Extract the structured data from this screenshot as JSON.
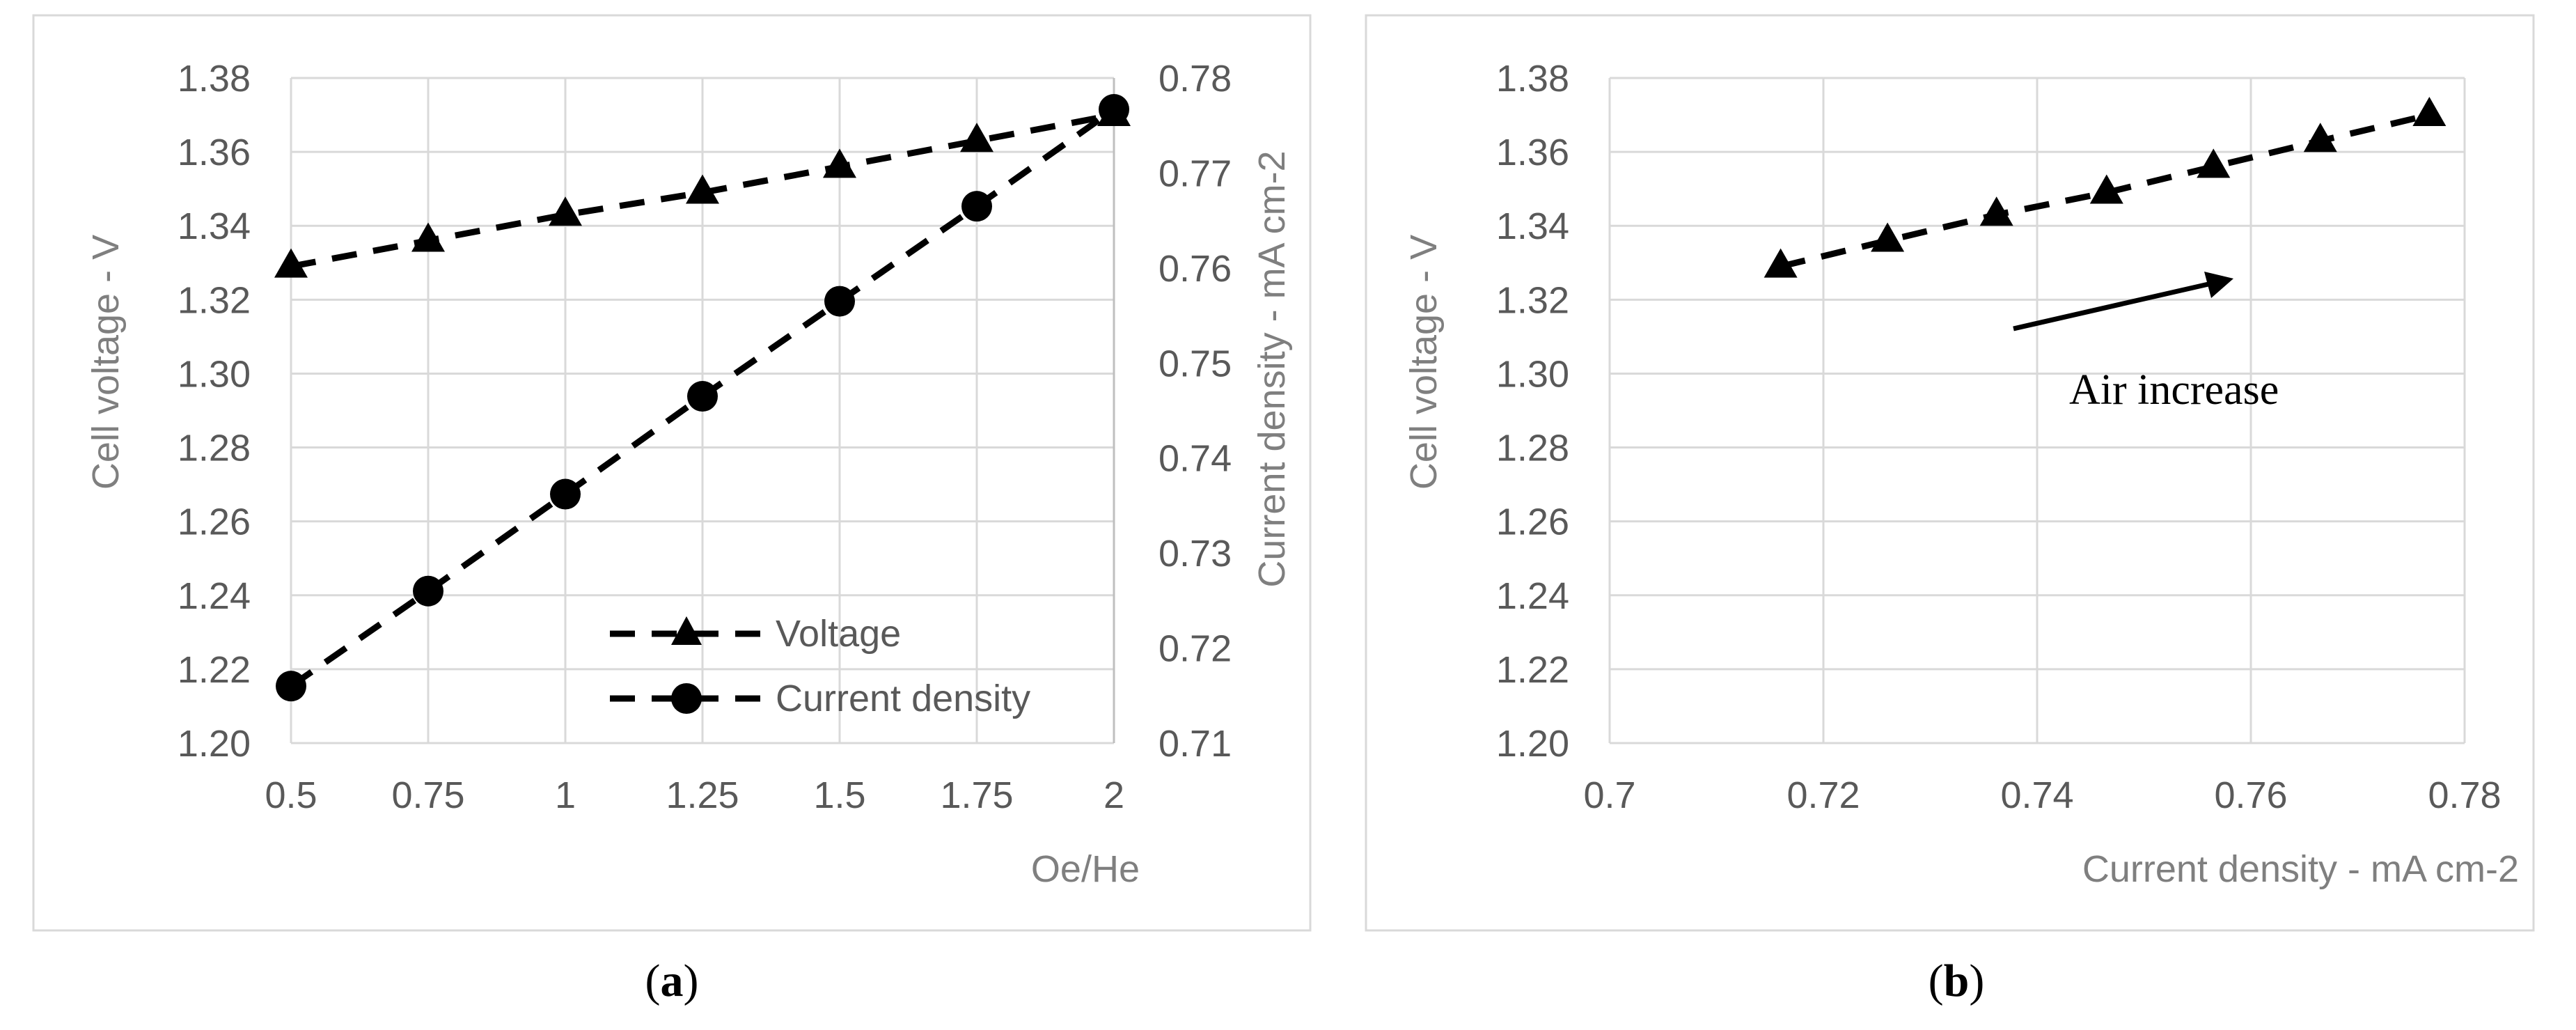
{
  "chart_data": [
    {
      "id": "a",
      "type": "line",
      "panel_label": {
        "open": "(",
        "letter": "a",
        "close": ")"
      },
      "x": [
        0.5,
        0.75,
        1,
        1.25,
        1.5,
        1.75,
        2
      ],
      "xlabel": "Oe/He",
      "xlim": [
        0.5,
        2
      ],
      "xticks": [
        "0.5",
        "0.75",
        "1",
        "1.25",
        "1.5",
        "1.75",
        "2"
      ],
      "ylabel": "Cell voltage - V",
      "ylim": [
        1.2,
        1.38
      ],
      "yticks": [
        "1.20",
        "1.22",
        "1.24",
        "1.26",
        "1.28",
        "1.30",
        "1.32",
        "1.34",
        "1.36",
        "1.38"
      ],
      "y2label": "Current density - mA cm-2",
      "y2lim": [
        0.71,
        0.78
      ],
      "y2ticks": [
        "0.71",
        "0.72",
        "0.73",
        "0.74",
        "0.75",
        "0.76",
        "0.77",
        "0.78"
      ],
      "grid": true,
      "legend_position": "bottom-right",
      "series": [
        {
          "name": "Voltage",
          "axis": "left",
          "marker": "triangle",
          "values": [
            1.329,
            1.336,
            1.343,
            1.349,
            1.356,
            1.363,
            1.37
          ]
        },
        {
          "name": "Current density",
          "axis": "right",
          "marker": "circle",
          "values": [
            0.716,
            0.726,
            0.7362,
            0.7465,
            0.7565,
            0.7665,
            0.7767
          ]
        }
      ]
    },
    {
      "id": "b",
      "type": "scatter",
      "panel_label": {
        "open": "(",
        "letter": "b",
        "close": ")"
      },
      "xlabel": "Current density - mA cm-2",
      "xlim": [
        0.7,
        0.78
      ],
      "xticks": [
        "0.7",
        "0.72",
        "0.74",
        "0.76",
        "0.78"
      ],
      "ylabel": "Cell voltage - V",
      "ylim": [
        1.2,
        1.38
      ],
      "yticks": [
        "1.20",
        "1.22",
        "1.24",
        "1.26",
        "1.28",
        "1.30",
        "1.32",
        "1.34",
        "1.36",
        "1.38"
      ],
      "grid": true,
      "series": [
        {
          "name": "Voltage",
          "marker": "triangle",
          "x": [
            0.716,
            0.726,
            0.7362,
            0.7465,
            0.7565,
            0.7665,
            0.7767
          ],
          "values": [
            1.329,
            1.336,
            1.343,
            1.349,
            1.356,
            1.363,
            1.37
          ]
        }
      ],
      "annotation": {
        "text": "Air increase",
        "arrow": true
      }
    }
  ]
}
